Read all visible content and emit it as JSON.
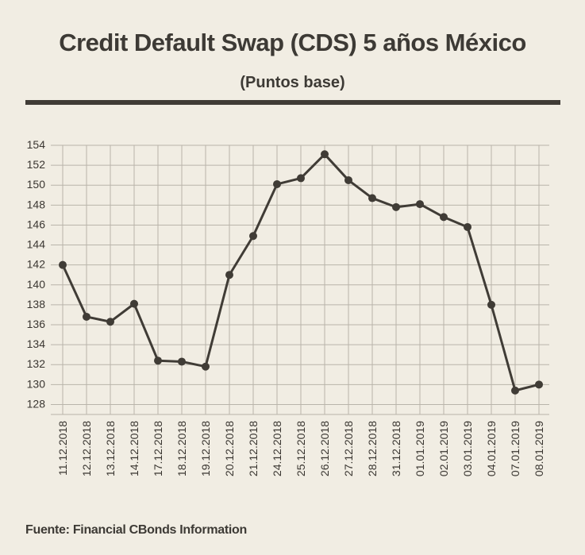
{
  "title": "Credit Default Swap (CDS) 5 años México",
  "subtitle": "(Puntos base)",
  "source": "Fuente: Financial CBonds Information",
  "colors": {
    "background": "#f1ede3",
    "line": "#403c36",
    "grid": "#b9b4aa",
    "text": "#3a3631"
  },
  "chart_data": {
    "type": "line",
    "categories": [
      "11.12.2018",
      "12.12.2018",
      "13.12.2018",
      "14.12.2018",
      "17.12.2018",
      "18.12.2018",
      "19.12.2018",
      "20.12.2018",
      "21.12.2018",
      "24.12.2018",
      "25.12.2018",
      "26.12.2018",
      "27.12.2018",
      "28.12.2018",
      "31.12.2018",
      "01.01.2019",
      "02.01.2019",
      "03.01.2019",
      "04.01.2019",
      "07.01.2019",
      "08.01.2019"
    ],
    "values": [
      142.0,
      136.8,
      136.3,
      138.1,
      132.4,
      132.3,
      131.8,
      141.0,
      144.9,
      150.1,
      150.7,
      153.1,
      150.5,
      148.7,
      147.8,
      148.1,
      146.8,
      145.8,
      138.0,
      129.4,
      130.0
    ],
    "yticks": [
      128,
      130,
      132,
      134,
      136,
      138,
      140,
      142,
      144,
      146,
      148,
      150,
      152,
      154
    ],
    "ylim": [
      127,
      154
    ],
    "xlabel": "",
    "ylabel": "",
    "grid": true,
    "legend": "none"
  }
}
